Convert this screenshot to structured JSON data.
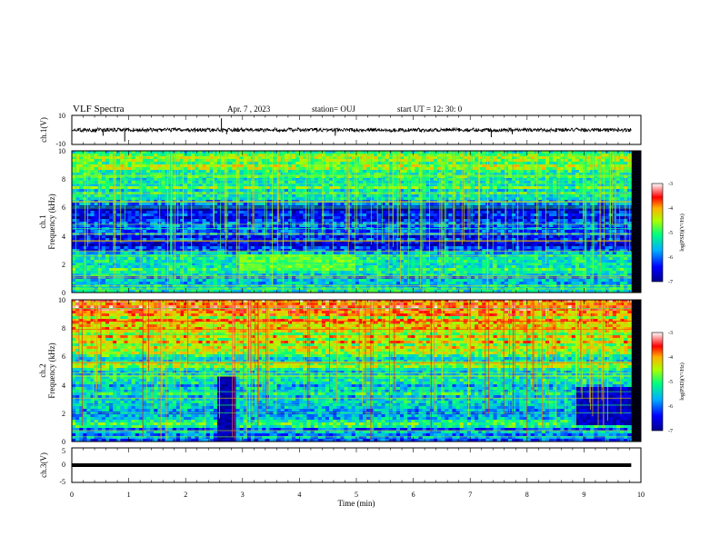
{
  "header": {
    "title": "VLF Spectra",
    "date": "Apr. 7 , 2023",
    "station": "station= OUJ",
    "start": "start  UT  =   12: 30: 0"
  },
  "chart_data": [
    {
      "type": "line",
      "name": "ch1-waveform",
      "ylabel": "ch.1(V)",
      "ylim": [
        -10,
        10
      ],
      "yticks": [
        "10",
        "-10"
      ],
      "xlim": [
        0,
        10
      ],
      "baseline": 0,
      "x_end": 9.83,
      "spikes": [
        {
          "x": 0.55,
          "y": -4
        },
        {
          "x": 0.93,
          "y": -8
        },
        {
          "x": 2.63,
          "y": 8
        },
        {
          "x": 2.72,
          "y": -3
        },
        {
          "x": 4.63,
          "y": -4
        },
        {
          "x": 7.37,
          "y": -5
        },
        {
          "x": 7.74,
          "y": -3
        }
      ]
    },
    {
      "type": "heatmap",
      "name": "ch1-spectrogram",
      "ylabel": "Frequency (kHz)",
      "channel_label": "ch.1",
      "ylim": [
        0,
        10
      ],
      "yticks": [
        "0",
        "2",
        "4",
        "6",
        "8",
        "10"
      ],
      "xlim": [
        0,
        10
      ],
      "colorbar": {
        "label": "log(PSD)(V²/Hz)",
        "range": [
          -7,
          -3
        ],
        "ticks": [
          "-3",
          "-4",
          "-5",
          "-6",
          "-7"
        ]
      },
      "bands": [
        {
          "f0": 0.0,
          "f1": 1.0,
          "level": -5.6
        },
        {
          "f0": 1.0,
          "f1": 1.4,
          "level": -5.4
        },
        {
          "f0": 1.4,
          "f1": 2.0,
          "level": -4.9
        },
        {
          "f0": 2.0,
          "f1": 2.8,
          "level": -5.5
        },
        {
          "f0": 2.8,
          "f1": 3.6,
          "level": -6.4
        },
        {
          "f0": 3.6,
          "f1": 4.4,
          "level": -6.2
        },
        {
          "f0": 4.4,
          "f1": 5.2,
          "level": -6.3
        },
        {
          "f0": 5.2,
          "f1": 6.2,
          "level": -6.5
        },
        {
          "f0": 6.2,
          "f1": 7.0,
          "level": -5.6
        },
        {
          "f0": 7.0,
          "f1": 8.0,
          "level": -5.1
        },
        {
          "f0": 8.0,
          "f1": 9.0,
          "level": -4.9
        },
        {
          "f0": 9.0,
          "f1": 10.0,
          "level": -4.8
        }
      ],
      "events": [
        {
          "t0": 2.95,
          "t1": 5.0,
          "f0": 1.5,
          "f1": 2.6,
          "level": -4.8
        }
      ]
    },
    {
      "type": "heatmap",
      "name": "ch2-spectrogram",
      "ylabel": "Frequency (kHz)",
      "channel_label": "ch.2",
      "ylim": [
        0,
        10
      ],
      "yticks": [
        "0",
        "2",
        "4",
        "6",
        "8",
        "10"
      ],
      "xlim": [
        0,
        10
      ],
      "colorbar": {
        "label": "log(PSD)(V²/Hz)",
        "range": [
          -7,
          -3
        ],
        "ticks": [
          "-3",
          "-4",
          "-5",
          "-6",
          "-7"
        ]
      },
      "bands": [
        {
          "f0": 0.0,
          "f1": 1.0,
          "level": -5.8
        },
        {
          "f0": 1.0,
          "f1": 2.0,
          "level": -5.3
        },
        {
          "f0": 2.0,
          "f1": 3.0,
          "level": -5.6
        },
        {
          "f0": 3.0,
          "f1": 4.0,
          "level": -5.5
        },
        {
          "f0": 4.0,
          "f1": 5.0,
          "level": -5.6
        },
        {
          "f0": 5.0,
          "f1": 6.0,
          "level": -5.1
        },
        {
          "f0": 6.0,
          "f1": 7.0,
          "level": -4.6
        },
        {
          "f0": 7.0,
          "f1": 8.0,
          "level": -4.4
        },
        {
          "f0": 8.0,
          "f1": 9.0,
          "level": -4.2
        },
        {
          "f0": 9.0,
          "f1": 10.0,
          "level": -3.9
        }
      ],
      "events": [
        {
          "t0": 2.55,
          "t1": 2.9,
          "f0": 0.0,
          "f1": 4.6,
          "level": -6.9
        },
        {
          "t0": 8.85,
          "t1": 9.83,
          "f0": 1.2,
          "f1": 3.8,
          "level": -6.7
        }
      ]
    },
    {
      "type": "line",
      "name": "ch3-waveform",
      "ylabel": "ch.3(V)",
      "ylim": [
        -5,
        5
      ],
      "yticks": [
        "5",
        "0",
        "-5"
      ],
      "xlim": [
        0,
        10
      ],
      "baseline": 0,
      "x_end": 9.83
    }
  ],
  "xaxis": {
    "label": "Time (min)",
    "ticks": [
      "0",
      "1",
      "2",
      "3",
      "4",
      "5",
      "6",
      "7",
      "8",
      "9",
      "10"
    ]
  }
}
